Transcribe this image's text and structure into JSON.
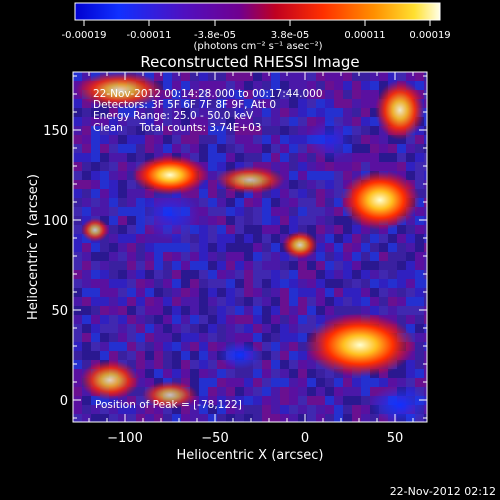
{
  "colorbar": {
    "tick_labels": [
      "-0.00019",
      "-0.00011",
      "-3.8e-05",
      "3.8e-05",
      "0.00011",
      "0.00019"
    ],
    "units_label": "(photons cm⁻² s⁻¹ asec⁻²)",
    "range": [
      -0.00019,
      0.00019
    ]
  },
  "plot": {
    "title": "Reconstructed RHESSI Image",
    "annotation_lines": [
      "22-Nov-2012 00:14:28.000 to 00:17:44.000",
      "Detectors: 3F 5F 6F 7F 8F 9F, Att 0",
      "Energy Range: 25.0 - 50.0 keV",
      "Clean     Total counts: 3.74E+03"
    ],
    "peak_label": "Position of Peak = [-78,122]",
    "xlabel": "Heliocentric X (arcsec)",
    "ylabel": "Heliocentric Y (arcsec)",
    "x_ticks": [
      "−100",
      "−50",
      "0",
      "50"
    ],
    "y_ticks": [
      "0",
      "50",
      "100",
      "150"
    ],
    "x_range": [
      -130,
      65
    ],
    "y_range": [
      -12,
      182
    ]
  },
  "footer": {
    "timestamp": "22-Nov-2012 02:12"
  },
  "colors": {
    "background": "#000000",
    "text": "#ffffff"
  }
}
